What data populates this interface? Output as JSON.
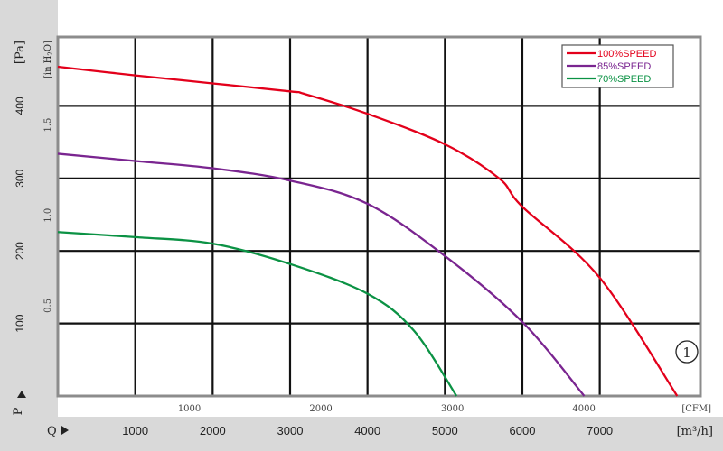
{
  "chart_data": {
    "type": "line",
    "y_units": {
      "primary": "[Pa]",
      "secondary": "[in H2O]"
    },
    "y_units_secondary_parts": {
      "prefix": "[in H",
      "sub": "2",
      "suffix": "O]"
    },
    "x_units": {
      "primary": "[m³/h]",
      "secondary": "[CFM]"
    },
    "y_axis_name": "P",
    "x_axis_name": "Q",
    "xlim_m3h": [
      0,
      8300
    ],
    "ylim_pa": [
      0,
      495
    ],
    "grid": true,
    "legend_placement": "top-right",
    "y_ticks_pa": [
      100,
      200,
      300,
      400
    ],
    "y_ticks_inh2o": [
      "0.5",
      "1.0",
      "1.5"
    ],
    "y_ticks_inh2o_values": [
      0.5,
      1.0,
      1.5
    ],
    "x_ticks_m3h": [
      1000,
      2000,
      3000,
      4000,
      5000,
      6000,
      7000
    ],
    "x_ticks_cfm": [
      1000,
      2000,
      3000,
      4000
    ],
    "series": [
      {
        "name": "100%SPEED",
        "color": "#e3001b",
        "x": [
          0,
          1000,
          2000,
          3000,
          3200,
          4000,
          5000,
          5700,
          6000,
          7000,
          8000
        ],
        "y": [
          454,
          442,
          431,
          420,
          416,
          389,
          347,
          300,
          261,
          163,
          0
        ]
      },
      {
        "name": "85%SPEED",
        "color": "#7a2590",
        "x": [
          0,
          1000,
          2000,
          3000,
          4000,
          5000,
          6000,
          6800
        ],
        "y": [
          334,
          324,
          314,
          297,
          265,
          193,
          102,
          0
        ]
      },
      {
        "name": "70%SPEED",
        "color": "#0b9244",
        "x": [
          0,
          1000,
          2000,
          3000,
          4000,
          4600,
          5150
        ],
        "y": [
          226,
          219,
          210,
          182,
          141,
          90,
          0
        ]
      }
    ],
    "annotation": "①"
  }
}
